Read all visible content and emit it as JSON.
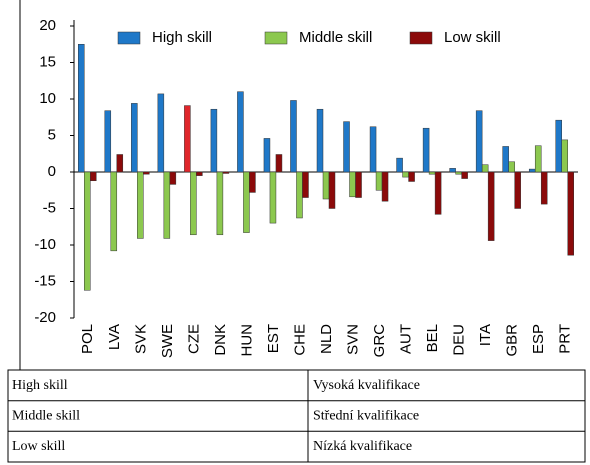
{
  "chart_data": {
    "type": "bar",
    "categories": [
      "POL",
      "LVA",
      "SVK",
      "SWE",
      "CZE",
      "DNK",
      "HUN",
      "EST",
      "CHE",
      "NLD",
      "SVN",
      "GRC",
      "AUT",
      "BEL",
      "DEU",
      "ITA",
      "GBR",
      "ESP",
      "PRT"
    ],
    "series": [
      {
        "name": "High skill",
        "color": "#1f78c8",
        "highlight": {
          "index": 4,
          "color": "#e0262b"
        },
        "values": [
          17.5,
          8.4,
          9.4,
          10.7,
          9.1,
          8.6,
          11.0,
          4.6,
          9.8,
          8.6,
          6.9,
          6.2,
          1.9,
          6.0,
          0.5,
          8.4,
          3.5,
          0.4,
          7.1
        ]
      },
      {
        "name": "Middle skill",
        "color": "#8cc84f",
        "values": [
          -16.2,
          -10.8,
          -9.1,
          -9.1,
          -8.6,
          -8.6,
          -8.3,
          -7.0,
          -6.3,
          -3.7,
          -3.4,
          -2.5,
          -0.7,
          -0.3,
          -0.3,
          1.0,
          1.4,
          3.6,
          4.4
        ]
      },
      {
        "name": "Low skill",
        "color": "#8b0a0a",
        "values": [
          -1.2,
          2.4,
          -0.3,
          -1.7,
          -0.5,
          -0.2,
          -2.8,
          2.4,
          -3.5,
          -5.0,
          -3.5,
          -4.0,
          -1.3,
          -5.8,
          -0.9,
          -9.4,
          -5.0,
          -4.4,
          -11.4
        ]
      }
    ],
    "ylim": [
      -20,
      20
    ],
    "yticks": [
      -20,
      -15,
      -10,
      -5,
      0,
      5,
      10,
      15,
      20
    ],
    "legend": "top"
  },
  "table": {
    "rows": [
      [
        "High skill",
        "Vysoká kvalifikace"
      ],
      [
        "Middle skill",
        "Střední kvalifikace"
      ],
      [
        "Low skill",
        "Nízká kvalifikace"
      ]
    ]
  }
}
